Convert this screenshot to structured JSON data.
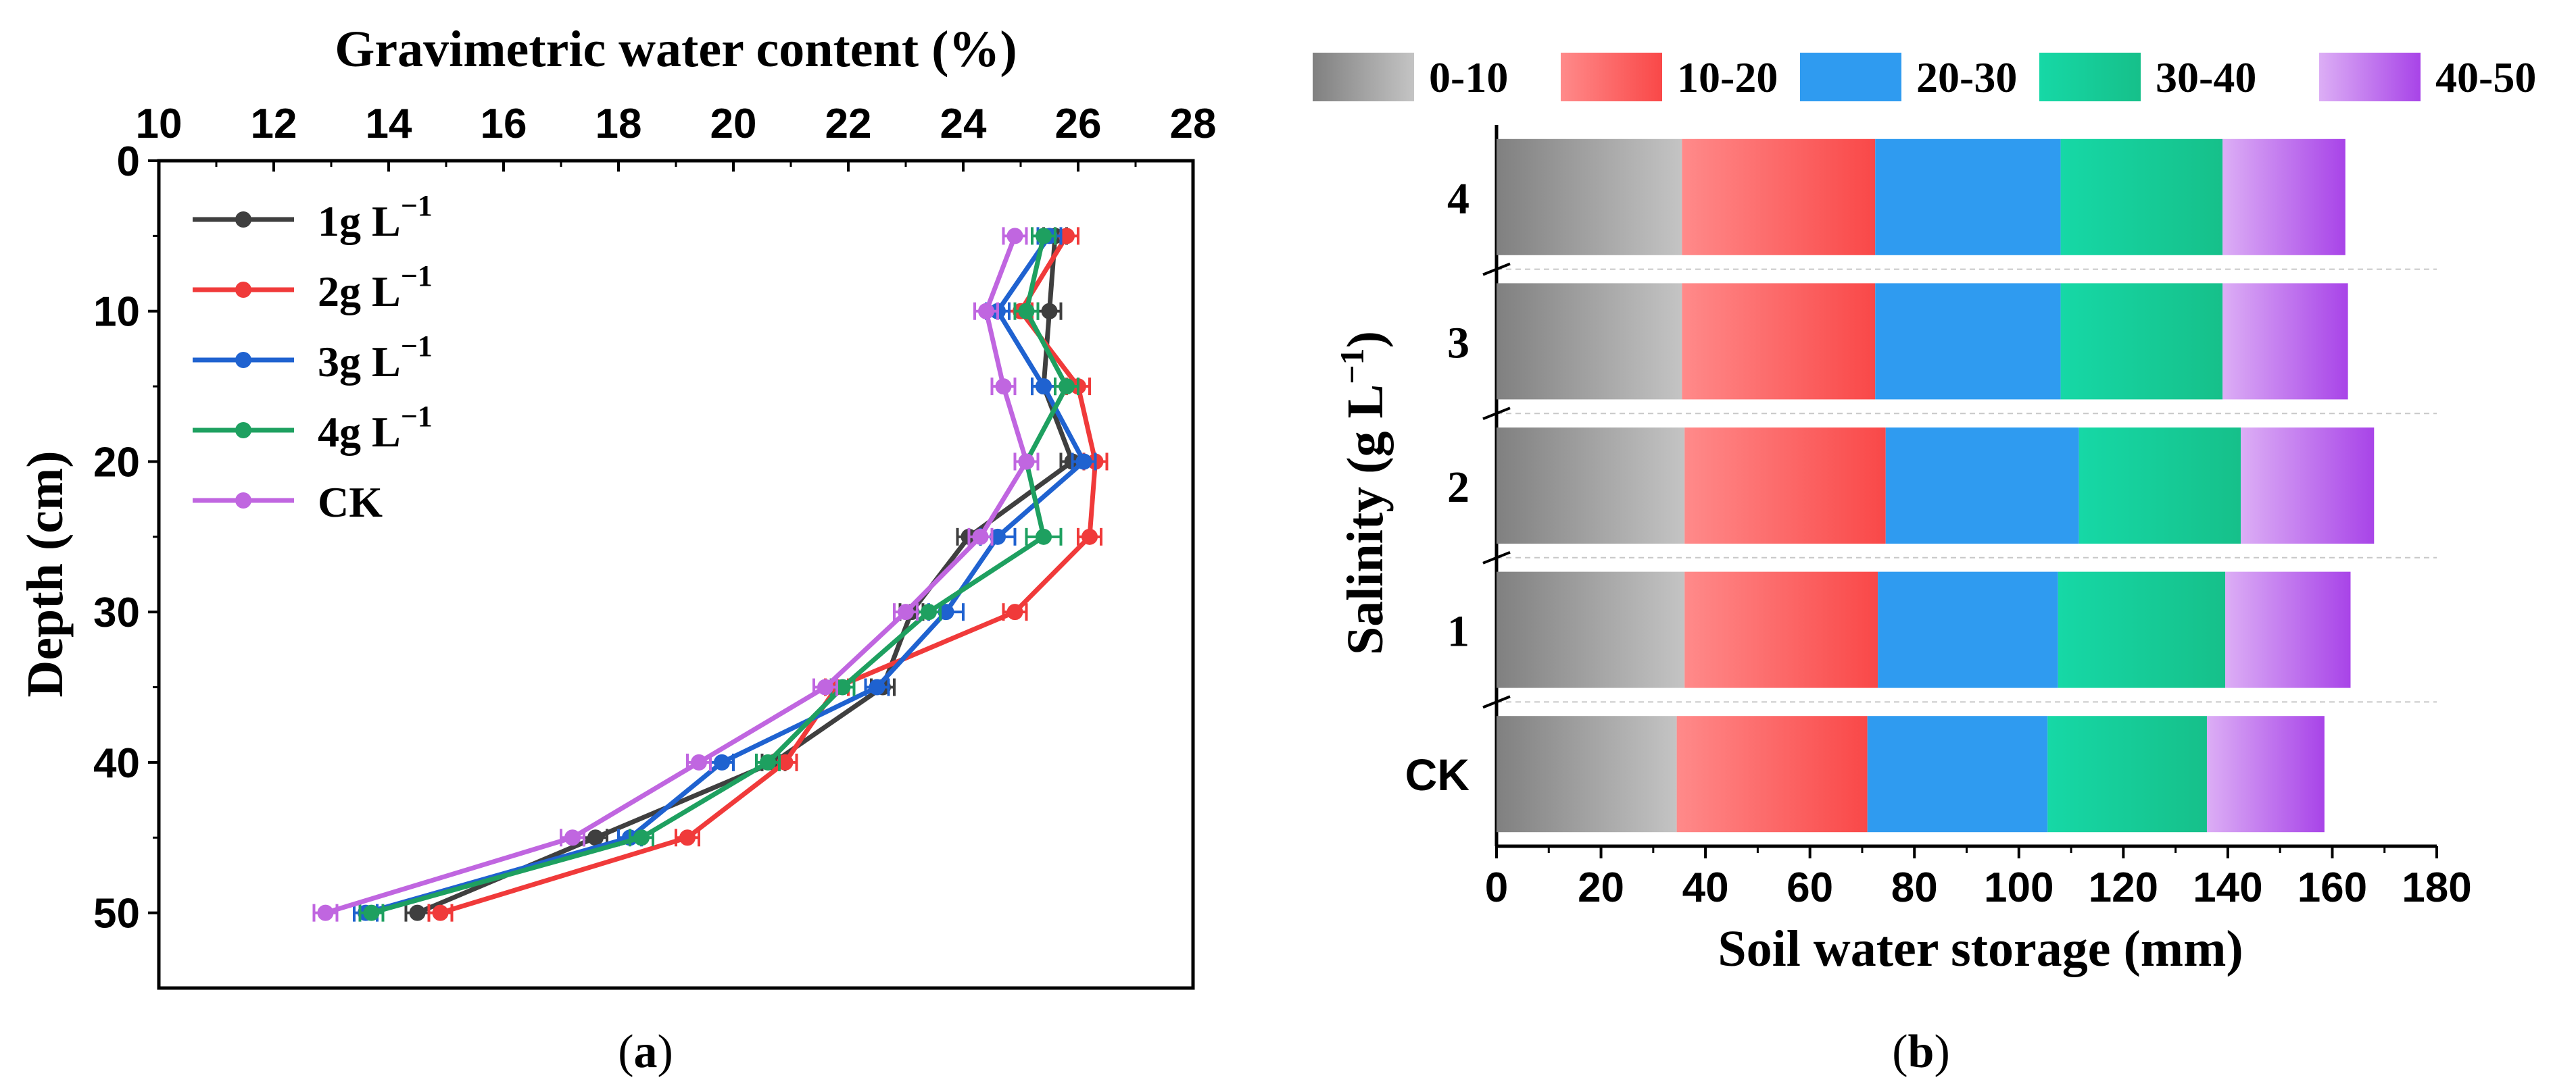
{
  "chart_data": [
    {
      "id": "panel-a",
      "type": "line",
      "panel_label": {
        "open": "(",
        "letter": "a",
        "close": ")"
      },
      "title": "",
      "xlabel": "Gravimetric water content (%)",
      "ylabel": "Depth (cm)",
      "xlim": [
        10,
        28
      ],
      "ylim": [
        0,
        55
      ],
      "x_ticks": [
        10,
        12,
        14,
        16,
        18,
        20,
        22,
        24,
        26,
        28
      ],
      "y_ticks": [
        0,
        10,
        20,
        30,
        40,
        50
      ],
      "y_inverted": true,
      "x_axis_position": "top",
      "grid": false,
      "legend_position": "top-left",
      "depth": [
        5,
        10,
        15,
        20,
        25,
        30,
        35,
        40,
        45,
        50
      ],
      "series": [
        {
          "name": "1g L",
          "sup": "−1",
          "color": "#3f3f3f",
          "values": [
            25.6,
            25.5,
            25.4,
            25.9,
            24.1,
            23.1,
            22.6,
            20.7,
            17.6,
            14.5
          ],
          "errors": [
            0.2,
            0.2,
            0.2,
            0.2,
            0.2,
            0.2,
            0.2,
            0.2,
            0.2,
            0.2
          ]
        },
        {
          "name": "2g L",
          "sup": "−1",
          "color": "#f03a3a",
          "values": [
            25.8,
            25.0,
            26.0,
            26.3,
            26.2,
            24.9,
            21.8,
            20.9,
            19.2,
            14.9
          ],
          "errors": [
            0.2,
            0.2,
            0.2,
            0.2,
            0.2,
            0.2,
            0.2,
            0.2,
            0.2,
            0.2
          ]
        },
        {
          "name": "3g L",
          "sup": "−1",
          "color": "#1f62d0",
          "values": [
            25.5,
            24.6,
            25.4,
            26.1,
            24.6,
            23.7,
            22.5,
            19.8,
            18.2,
            13.6
          ],
          "errors": [
            0.2,
            0.2,
            0.2,
            0.2,
            0.3,
            0.3,
            0.2,
            0.2,
            0.2,
            0.2
          ]
        },
        {
          "name": "4g L",
          "sup": "−1",
          "color": "#1ea060",
          "values": [
            25.4,
            25.1,
            25.8,
            25.1,
            25.4,
            23.4,
            21.9,
            20.6,
            18.4,
            13.7
          ],
          "errors": [
            0.2,
            0.2,
            0.2,
            0.2,
            0.3,
            0.2,
            0.2,
            0.2,
            0.2,
            0.2
          ]
        },
        {
          "name": "CK",
          "sup": "",
          "color": "#c066e0",
          "values": [
            24.9,
            24.4,
            24.7,
            25.1,
            24.3,
            23.0,
            21.6,
            19.4,
            17.2,
            12.9
          ],
          "errors": [
            0.2,
            0.2,
            0.2,
            0.2,
            0.2,
            0.2,
            0.2,
            0.2,
            0.2,
            0.2
          ]
        }
      ]
    },
    {
      "id": "panel-b",
      "type": "bar",
      "orientation": "horizontal",
      "stacked": true,
      "panel_label": {
        "open": "(",
        "letter": "b",
        "close": ")"
      },
      "title": "",
      "xlabel": "Soil water storage (mm)",
      "ylabel": "Salinity (g L",
      "ylabel_sup": "−1",
      "ylabel_end": ")",
      "xlim": [
        0,
        180
      ],
      "x_ticks": [
        0,
        20,
        40,
        60,
        80,
        100,
        120,
        140,
        160,
        180
      ],
      "grid": false,
      "legend_position": "top",
      "categories": [
        "CK",
        "1",
        "2",
        "3",
        "4"
      ],
      "series": [
        {
          "name": "0-10",
          "color_from": "#808080",
          "color_to": "#c4c4c4",
          "values": [
            34.5,
            36.0,
            36.0,
            35.5,
            35.5
          ]
        },
        {
          "name": "10-20",
          "color_from": "#ff8a8a",
          "color_to": "#f94848",
          "values": [
            36.5,
            37.0,
            38.5,
            37.0,
            37.0
          ]
        },
        {
          "name": "20-30",
          "color_from": "#2f9bf0",
          "color_to": "#2f9bf0",
          "values": [
            34.5,
            34.5,
            37.0,
            35.5,
            35.5
          ]
        },
        {
          "name": "30-40",
          "color_from": "#16d8a6",
          "color_to": "#16c08a",
          "values": [
            30.5,
            32.0,
            31.0,
            31.0,
            31.0
          ]
        },
        {
          "name": "40-50",
          "color_from": "#dcaef5",
          "color_to": "#a844e8",
          "values": [
            22.5,
            24.0,
            25.5,
            24.0,
            23.5
          ]
        }
      ]
    }
  ]
}
